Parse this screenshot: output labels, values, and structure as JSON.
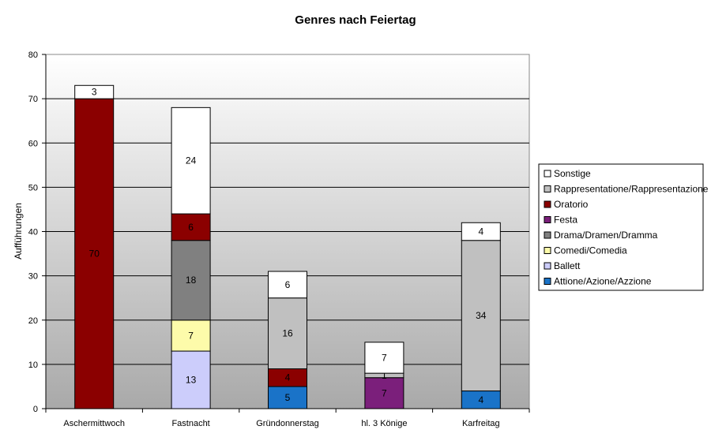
{
  "chart_data": {
    "type": "bar",
    "stacked": true,
    "title": "Genres nach Feiertag",
    "xlabel": "",
    "ylabel": "Aufführungen",
    "ylim": [
      0,
      80
    ],
    "yticks": [
      0,
      10,
      20,
      30,
      40,
      50,
      60,
      70,
      80
    ],
    "grid": true,
    "legend_position": "right",
    "categories": [
      "Aschermittwoch",
      "Fastnacht",
      "Gründonnerstag",
      "hl. 3 Könige",
      "Karfreitag"
    ],
    "series": [
      {
        "name": "Attione/Azione/Azzione",
        "color": "#1a73c8",
        "values": [
          0,
          0,
          5,
          0,
          4
        ]
      },
      {
        "name": "Ballett",
        "color": "#cccdfb",
        "values": [
          0,
          13,
          0,
          0,
          0
        ]
      },
      {
        "name": "Comedi/Comedia",
        "color": "#fdfbaa",
        "values": [
          0,
          7,
          0,
          0,
          0
        ]
      },
      {
        "name": "Drama/Dramen/Dramma",
        "color": "#808080",
        "values": [
          0,
          18,
          0,
          0,
          0
        ]
      },
      {
        "name": "Festa",
        "color": "#7b1f7b",
        "values": [
          0,
          0,
          0,
          7,
          0
        ]
      },
      {
        "name": "Oratorio",
        "color": "#8b0000",
        "values": [
          70,
          6,
          4,
          0,
          0
        ]
      },
      {
        "name": "Rappresentatione/Rappresentazione",
        "color": "#c0c0c0",
        "values": [
          0,
          0,
          16,
          1,
          34
        ]
      },
      {
        "name": "Sonstige",
        "color": "#ffffff",
        "values": [
          3,
          24,
          6,
          7,
          4
        ]
      }
    ]
  }
}
